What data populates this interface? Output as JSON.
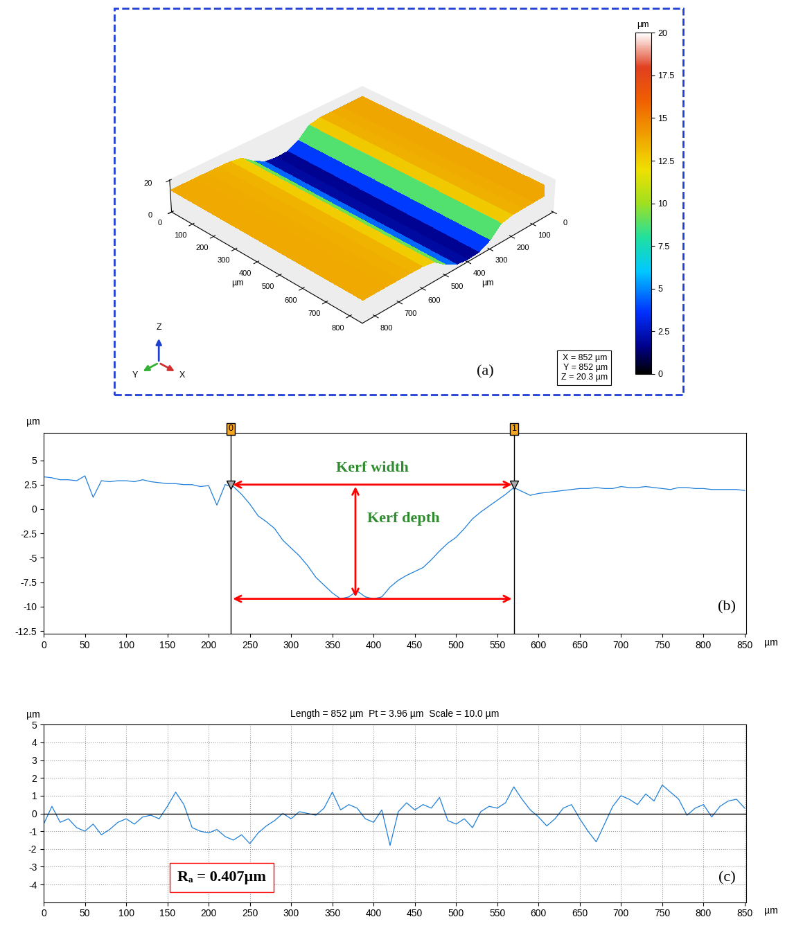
{
  "chart_data": [
    {
      "type": "surface3d",
      "label": "(a)",
      "x_label": "µm",
      "y_label": "µm",
      "xlim": [
        0,
        852
      ],
      "ylim": [
        0,
        852
      ],
      "zlim": [
        0,
        20.3
      ],
      "xticks": [
        0,
        100,
        200,
        300,
        400,
        500,
        600,
        700,
        800
      ],
      "yticks": [
        0,
        100,
        200,
        300,
        400,
        500,
        600,
        700,
        800
      ],
      "zticks": [
        0,
        20
      ],
      "x": [
        0,
        50,
        100,
        150,
        200,
        250,
        300,
        350,
        400,
        450,
        500,
        550,
        600,
        650,
        700,
        750,
        800,
        850
      ],
      "values": [
        13.8,
        13.8,
        13.7,
        13.6,
        13.4,
        12.0,
        5.5,
        2.0,
        1.5,
        2.5,
        6.5,
        12.0,
        13.3,
        13.5,
        13.6,
        13.7,
        13.7,
        13.7
      ],
      "colorbar": {
        "title": "µm",
        "range": [
          0,
          20
        ],
        "ticks": [
          0,
          2.5,
          5,
          7.5,
          10,
          12.5,
          15,
          17.5,
          20
        ]
      },
      "dimensions": [
        "X = 852 µm",
        "Y = 852 µm",
        "Z = 20.3 µm"
      ],
      "triad_labels": [
        "X",
        "Y",
        "Z"
      ]
    },
    {
      "type": "line",
      "label": "(b)",
      "y_unit": "µm",
      "x_unit": "µm",
      "grid": false,
      "xlim": [
        0,
        852
      ],
      "ylim": [
        -12.8,
        7.8
      ],
      "xticks": [
        0,
        50,
        100,
        150,
        200,
        250,
        300,
        350,
        400,
        450,
        500,
        550,
        600,
        650,
        700,
        750,
        800,
        850
      ],
      "yticks": [
        -12.5,
        -10,
        -7.5,
        -5,
        -2.5,
        0,
        2.5,
        5
      ],
      "color": "#1f7fd8",
      "x": [
        0,
        10,
        20,
        30,
        40,
        50,
        60,
        70,
        80,
        90,
        100,
        110,
        120,
        130,
        140,
        150,
        160,
        170,
        180,
        190,
        200,
        210,
        220,
        230,
        240,
        250,
        260,
        270,
        280,
        290,
        300,
        310,
        320,
        330,
        340,
        350,
        360,
        370,
        380,
        390,
        400,
        410,
        420,
        430,
        440,
        450,
        460,
        470,
        480,
        490,
        500,
        510,
        520,
        530,
        540,
        550,
        560,
        570,
        580,
        590,
        600,
        610,
        620,
        630,
        640,
        650,
        660,
        670,
        680,
        690,
        700,
        710,
        720,
        730,
        740,
        750,
        760,
        770,
        780,
        790,
        800,
        810,
        820,
        830,
        840,
        850
      ],
      "values": [
        3.3,
        3.2,
        3.0,
        3.0,
        2.9,
        3.4,
        1.2,
        2.9,
        2.8,
        2.9,
        2.9,
        2.8,
        3.0,
        2.8,
        2.7,
        2.6,
        2.6,
        2.5,
        2.5,
        2.3,
        2.4,
        0.4,
        2.5,
        2.3,
        1.5,
        0.5,
        -0.7,
        -1.3,
        -2.0,
        -3.2,
        -4.0,
        -4.8,
        -5.8,
        -7.0,
        -7.8,
        -8.6,
        -9.2,
        -9.0,
        -8.4,
        -9.0,
        -9.2,
        -9.0,
        -8.0,
        -7.3,
        -6.8,
        -6.4,
        -6.0,
        -5.2,
        -4.3,
        -3.5,
        -2.9,
        -2.0,
        -1.0,
        -0.3,
        0.3,
        0.9,
        1.5,
        2.2,
        1.8,
        1.4,
        1.6,
        1.7,
        1.8,
        1.9,
        2.0,
        2.1,
        2.1,
        2.2,
        2.1,
        2.1,
        2.3,
        2.2,
        2.2,
        2.3,
        2.2,
        2.1,
        2.0,
        2.2,
        2.2,
        2.1,
        2.1,
        2.0,
        2.0,
        2.0,
        2.0,
        1.9
      ],
      "cursors": [
        {
          "label": "0",
          "x": 227
        },
        {
          "label": "1",
          "x": 570
        }
      ],
      "kerf_width": {
        "text": "Kerf width",
        "y": 2.5
      },
      "kerf_depth": {
        "text": "Kerf depth",
        "x": 378,
        "y_bottom": -9.2
      }
    },
    {
      "type": "line",
      "label": "(c)",
      "y_unit": "µm",
      "x_unit": "µm",
      "grid": true,
      "title": "Length = 852 µm  Pt = 3.96 µm  Scale = 10.0 µm",
      "xlim": [
        0,
        852
      ],
      "ylim": [
        -5,
        5
      ],
      "xticks": [
        0,
        50,
        100,
        150,
        200,
        250,
        300,
        350,
        400,
        450,
        500,
        550,
        600,
        650,
        700,
        750,
        800,
        850
      ],
      "yticks": [
        -4,
        -3,
        -2,
        -1,
        0,
        1,
        2,
        3,
        4,
        5
      ],
      "color": "#1f7fd8",
      "baseline": 0,
      "x": [
        0,
        10,
        20,
        30,
        40,
        50,
        60,
        70,
        80,
        90,
        100,
        110,
        120,
        130,
        140,
        150,
        160,
        170,
        180,
        190,
        200,
        210,
        220,
        230,
        240,
        250,
        260,
        270,
        280,
        290,
        300,
        310,
        320,
        330,
        340,
        350,
        360,
        370,
        380,
        390,
        400,
        410,
        420,
        430,
        440,
        450,
        460,
        470,
        480,
        490,
        500,
        510,
        520,
        530,
        540,
        550,
        560,
        570,
        580,
        590,
        600,
        610,
        620,
        630,
        640,
        650,
        660,
        670,
        680,
        690,
        700,
        710,
        720,
        730,
        740,
        750,
        760,
        770,
        780,
        790,
        800,
        810,
        820,
        830,
        840,
        850
      ],
      "values": [
        -0.6,
        0.4,
        -0.5,
        -0.3,
        -0.8,
        -1.0,
        -0.6,
        -1.2,
        -0.9,
        -0.5,
        -0.3,
        -0.6,
        -0.2,
        -0.1,
        -0.3,
        0.4,
        1.2,
        0.5,
        -0.8,
        -1.0,
        -1.1,
        -0.9,
        -1.3,
        -1.5,
        -1.2,
        -1.7,
        -1.1,
        -0.7,
        -0.4,
        0.0,
        -0.3,
        0.1,
        0.0,
        -0.1,
        0.3,
        1.2,
        0.2,
        0.5,
        0.3,
        -0.3,
        -0.5,
        0.2,
        -1.8,
        0.1,
        0.6,
        0.2,
        0.5,
        0.3,
        0.9,
        -0.4,
        -0.6,
        -0.3,
        -0.8,
        0.1,
        0.4,
        0.3,
        0.6,
        1.5,
        0.8,
        0.2,
        -0.2,
        -0.7,
        -0.3,
        0.3,
        0.5,
        -0.3,
        -1.0,
        -1.6,
        -0.6,
        0.4,
        1.0,
        0.8,
        0.5,
        1.1,
        0.7,
        1.6,
        1.2,
        0.8,
        -0.1,
        0.3,
        0.5,
        -0.2,
        0.4,
        0.7,
        0.8,
        0.3
      ],
      "annotation": "Rₐ = 0.407µm"
    }
  ]
}
